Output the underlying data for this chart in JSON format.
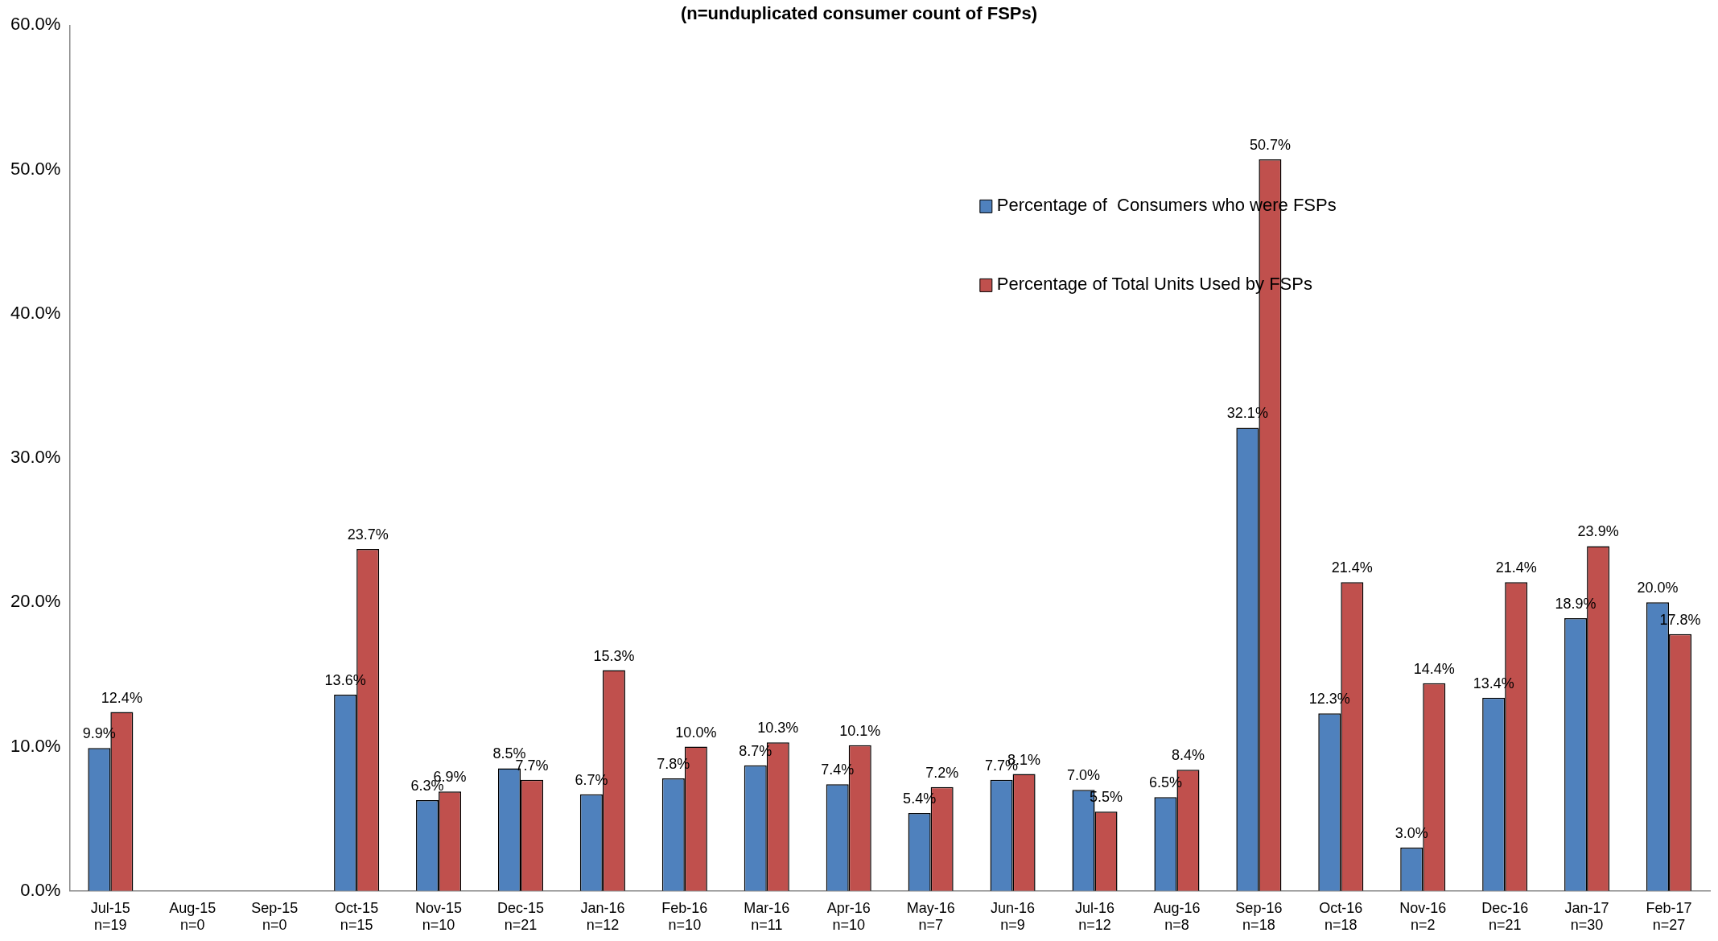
{
  "chart_data": {
    "type": "bar",
    "title": "(n=unduplicated consumer count of FSPs)",
    "categories": [
      "Jul-15\nn=19",
      "Aug-15\nn=0",
      "Sep-15\nn=0",
      "Oct-15\nn=15",
      "Nov-15\nn=10",
      "Dec-15\nn=21",
      "Jan-16\nn=12",
      "Feb-16\nn=10",
      "Mar-16\nn=11",
      "Apr-16\nn=10",
      "May-16\nn=7",
      "Jun-16\nn=9",
      "Jul-16\nn=12",
      "Aug-16\nn=8",
      "Sep-16\nn=18",
      "Oct-16\nn=18",
      "Nov-16\nn=2",
      "Dec-16\nn=21",
      "Jan-17\nn=30",
      "Feb-17\nn=27"
    ],
    "series": [
      {
        "name": "Percentage of  Consumers who were FSPs",
        "color": "#4f81bd",
        "values": [
          9.9,
          null,
          null,
          13.6,
          6.3,
          8.5,
          6.7,
          7.8,
          8.7,
          7.4,
          5.4,
          7.7,
          7.0,
          6.5,
          32.1,
          12.3,
          3.0,
          13.4,
          18.9,
          20.0
        ],
        "value_labels": [
          "9.9%",
          null,
          null,
          "13.6%",
          "6.3%",
          "8.5%",
          "6.7%",
          "7.8%",
          "8.7%",
          "7.4%",
          "5.4%",
          "7.7%",
          "7.0%",
          "6.5%",
          "32.1%",
          "12.3%",
          "3.0%",
          "13.4%",
          "18.9%",
          "20.0%"
        ]
      },
      {
        "name": "Percentage of Total Units Used by FSPs",
        "color": "#c0504d",
        "values": [
          12.4,
          null,
          null,
          23.7,
          6.9,
          7.7,
          15.3,
          10.0,
          10.3,
          10.1,
          7.2,
          8.1,
          5.5,
          8.4,
          50.7,
          21.4,
          14.4,
          21.4,
          23.9,
          17.8
        ],
        "value_labels": [
          "12.4%",
          null,
          null,
          "23.7%",
          "6.9%",
          "7.7%",
          "15.3%",
          "10.0%",
          "10.3%",
          "10.1%",
          "7.2%",
          "8.1%",
          "5.5%",
          "8.4%",
          "50.7%",
          "21.4%",
          "14.4%",
          "21.4%",
          "23.9%",
          "17.8%"
        ]
      }
    ],
    "ylim": [
      0,
      60
    ],
    "yticks": [
      {
        "value": 0,
        "label": "0.0%"
      },
      {
        "value": 10,
        "label": "10.0%"
      },
      {
        "value": 20,
        "label": "20.0%"
      },
      {
        "value": 30,
        "label": "30.0%"
      },
      {
        "value": 40,
        "label": "40.0%"
      },
      {
        "value": 50,
        "label": "50.0%"
      },
      {
        "value": 60,
        "label": "60.0%"
      }
    ],
    "grid": false,
    "legend": "top"
  }
}
